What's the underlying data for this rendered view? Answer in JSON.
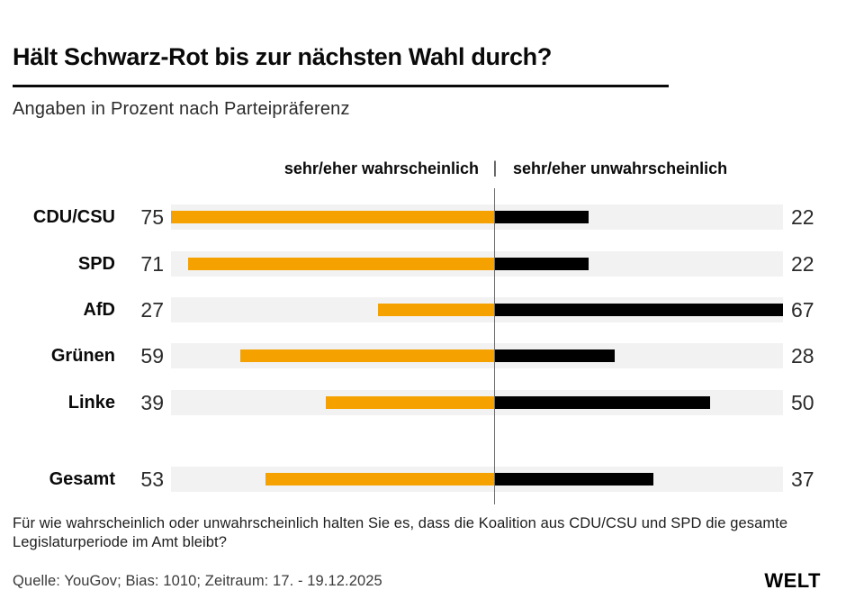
{
  "header": {
    "title": "Hält Schwarz-Rot bis zur nächsten Wahl durch?",
    "subtitle": "Angaben in Prozent nach Parteipräferenz"
  },
  "chart_data": {
    "type": "bar",
    "variant": "diverging-horizontal",
    "title": "Hält Schwarz-Rot bis zur nächsten Wahl durch?",
    "subtitle": "Angaben in Prozent nach Parteipräferenz",
    "unit": "Prozent",
    "legend": {
      "left": "sehr/eher wahrscheinlich",
      "separator": "|",
      "right": "sehr/eher unwahrscheinlich",
      "position": "top"
    },
    "categories": [
      "CDU/CSU",
      "SPD",
      "AfD",
      "Grünen",
      "Linke",
      "Gesamt"
    ],
    "series": [
      {
        "name": "sehr/eher wahrscheinlich",
        "color": "#f5a200",
        "values": [
          75,
          71,
          27,
          59,
          39,
          53
        ]
      },
      {
        "name": "sehr/eher unwahrscheinlich",
        "color": "#000000",
        "values": [
          22,
          22,
          67,
          28,
          50,
          37
        ]
      }
    ],
    "axis": {
      "left_max": 75,
      "right_max": 67,
      "grid": false
    },
    "track_color": "#f2f2f2",
    "divider_color": "#6f6f6f",
    "summary_row": "Gesamt"
  },
  "footer": {
    "question": "Für wie wahrscheinlich oder unwahrscheinlich halten Sie es, dass die Koalition aus CDU/CSU und SPD die gesamte Legislaturperiode im Amt bleibt?",
    "source": "Quelle: YouGov; Bias: 1010; Zeitraum: 17. - 19.12.2025",
    "brand": "WELT"
  }
}
